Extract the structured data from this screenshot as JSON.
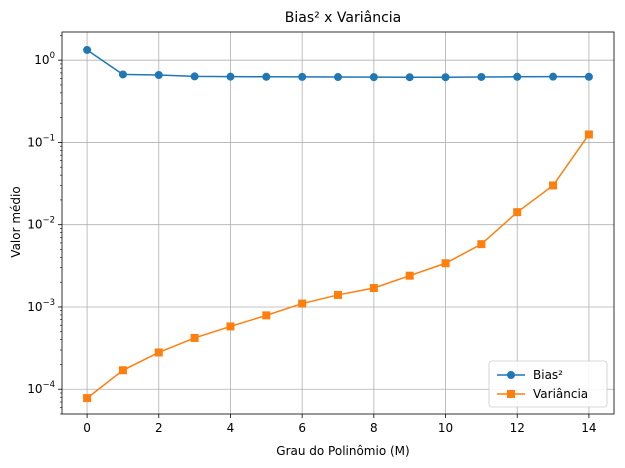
{
  "chart_data": {
    "type": "line",
    "title": "Bias² x Variância",
    "xlabel": "Grau do Polinômio (M)",
    "ylabel": "Valor médio",
    "yscale": "log",
    "xlim": [
      -0.7,
      14.7
    ],
    "ylim": [
      5e-05,
      2.2
    ],
    "grid": true,
    "legend_position": "lower-right",
    "x": [
      0,
      1,
      2,
      3,
      4,
      5,
      6,
      7,
      8,
      9,
      10,
      11,
      12,
      13,
      14
    ],
    "xticks": [
      0,
      2,
      4,
      6,
      8,
      10,
      12,
      14
    ],
    "yticks": [
      {
        "value": 0.0001,
        "base": "10",
        "exp": "−4"
      },
      {
        "value": 0.001,
        "base": "10",
        "exp": "−3"
      },
      {
        "value": 0.01,
        "base": "10",
        "exp": "−2"
      },
      {
        "value": 0.1,
        "base": "10",
        "exp": "−1"
      },
      {
        "value": 1,
        "base": "10",
        "exp": "0"
      }
    ],
    "series": [
      {
        "name": "Bias²",
        "color": "#1f77b4",
        "marker": "circle",
        "values": [
          1.33,
          0.67,
          0.66,
          0.635,
          0.63,
          0.628,
          0.626,
          0.624,
          0.622,
          0.621,
          0.621,
          0.625,
          0.628,
          0.63,
          0.628
        ]
      },
      {
        "name": "Variância",
        "color": "#ff7f0e",
        "marker": "square",
        "values": [
          7.8e-05,
          0.00017,
          0.00028,
          0.00042,
          0.00058,
          0.00079,
          0.0011,
          0.0014,
          0.0017,
          0.0024,
          0.0034,
          0.0058,
          0.0142,
          0.03,
          0.125
        ]
      }
    ]
  }
}
